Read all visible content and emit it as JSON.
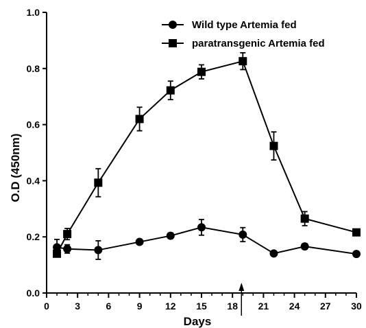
{
  "chart_data": {
    "type": "line",
    "title": "",
    "xlabel": "Days",
    "ylabel": "O.D  (450nm)",
    "xlim": [
      0,
      30
    ],
    "ylim": [
      0.0,
      1.0
    ],
    "x_ticks": [
      "0",
      "3",
      "6",
      "9",
      "12",
      "15",
      "18",
      "21",
      "24",
      "27",
      "30"
    ],
    "x_minor_ticks": [
      1,
      2,
      4,
      5,
      7,
      8,
      10,
      11,
      13,
      14,
      16,
      17,
      19,
      20,
      22,
      23,
      25,
      26,
      28,
      29
    ],
    "y_ticks": [
      "0.0",
      "0.2",
      "0.4",
      "0.6",
      "0.8",
      "1.0"
    ],
    "grid": false,
    "legend_position": "top-right",
    "series": [
      {
        "name": "Wild type Artemia fed",
        "marker": "circle",
        "color": "#000000",
        "x": [
          1,
          2,
          5,
          9,
          12,
          15,
          19,
          22,
          25,
          30
        ],
        "y": [
          0.163,
          0.157,
          0.153,
          0.182,
          0.204,
          0.234,
          0.208,
          0.141,
          0.166,
          0.139
        ],
        "error": [
          0.028,
          0.015,
          0.033,
          0.008,
          0.01,
          0.028,
          0.025,
          0.008,
          0.01,
          0.008
        ]
      },
      {
        "name": "paratransgenic Artemia fed",
        "marker": "square",
        "color": "#000000",
        "x": [
          1,
          2,
          5,
          9,
          12,
          15,
          19,
          22,
          25,
          30
        ],
        "y": [
          0.14,
          0.21,
          0.393,
          0.62,
          0.722,
          0.788,
          0.826,
          0.524,
          0.265,
          0.216
        ],
        "error": [
          0.012,
          0.02,
          0.05,
          0.042,
          0.033,
          0.025,
          0.03,
          0.05,
          0.025,
          0.008
        ]
      }
    ],
    "annotations": [
      {
        "type": "arrow",
        "x": 19,
        "direction": "up",
        "text": ""
      }
    ]
  }
}
